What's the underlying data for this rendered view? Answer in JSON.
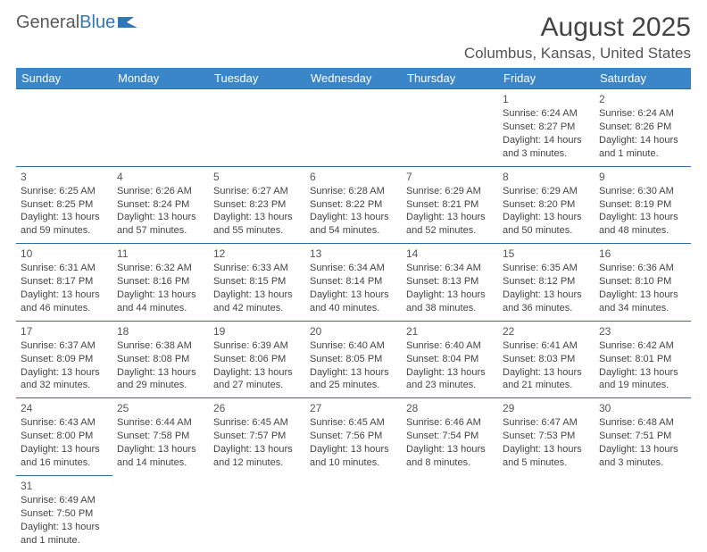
{
  "logo": {
    "part1": "General",
    "part2": "Blue"
  },
  "title": "August 2025",
  "location": "Columbus, Kansas, United States",
  "colors": {
    "header_bg": "#3a86c8",
    "header_fg": "#ffffff",
    "border": "#2f6aa8",
    "text": "#444444"
  },
  "day_headers": [
    "Sunday",
    "Monday",
    "Tuesday",
    "Wednesday",
    "Thursday",
    "Friday",
    "Saturday"
  ],
  "weeks": [
    [
      null,
      null,
      null,
      null,
      null,
      {
        "n": "1",
        "sr": "Sunrise: 6:24 AM",
        "ss": "Sunset: 8:27 PM",
        "dl": "Daylight: 14 hours and 3 minutes."
      },
      {
        "n": "2",
        "sr": "Sunrise: 6:24 AM",
        "ss": "Sunset: 8:26 PM",
        "dl": "Daylight: 14 hours and 1 minute."
      }
    ],
    [
      {
        "n": "3",
        "sr": "Sunrise: 6:25 AM",
        "ss": "Sunset: 8:25 PM",
        "dl": "Daylight: 13 hours and 59 minutes."
      },
      {
        "n": "4",
        "sr": "Sunrise: 6:26 AM",
        "ss": "Sunset: 8:24 PM",
        "dl": "Daylight: 13 hours and 57 minutes."
      },
      {
        "n": "5",
        "sr": "Sunrise: 6:27 AM",
        "ss": "Sunset: 8:23 PM",
        "dl": "Daylight: 13 hours and 55 minutes."
      },
      {
        "n": "6",
        "sr": "Sunrise: 6:28 AM",
        "ss": "Sunset: 8:22 PM",
        "dl": "Daylight: 13 hours and 54 minutes."
      },
      {
        "n": "7",
        "sr": "Sunrise: 6:29 AM",
        "ss": "Sunset: 8:21 PM",
        "dl": "Daylight: 13 hours and 52 minutes."
      },
      {
        "n": "8",
        "sr": "Sunrise: 6:29 AM",
        "ss": "Sunset: 8:20 PM",
        "dl": "Daylight: 13 hours and 50 minutes."
      },
      {
        "n": "9",
        "sr": "Sunrise: 6:30 AM",
        "ss": "Sunset: 8:19 PM",
        "dl": "Daylight: 13 hours and 48 minutes."
      }
    ],
    [
      {
        "n": "10",
        "sr": "Sunrise: 6:31 AM",
        "ss": "Sunset: 8:17 PM",
        "dl": "Daylight: 13 hours and 46 minutes."
      },
      {
        "n": "11",
        "sr": "Sunrise: 6:32 AM",
        "ss": "Sunset: 8:16 PM",
        "dl": "Daylight: 13 hours and 44 minutes."
      },
      {
        "n": "12",
        "sr": "Sunrise: 6:33 AM",
        "ss": "Sunset: 8:15 PM",
        "dl": "Daylight: 13 hours and 42 minutes."
      },
      {
        "n": "13",
        "sr": "Sunrise: 6:34 AM",
        "ss": "Sunset: 8:14 PM",
        "dl": "Daylight: 13 hours and 40 minutes."
      },
      {
        "n": "14",
        "sr": "Sunrise: 6:34 AM",
        "ss": "Sunset: 8:13 PM",
        "dl": "Daylight: 13 hours and 38 minutes."
      },
      {
        "n": "15",
        "sr": "Sunrise: 6:35 AM",
        "ss": "Sunset: 8:12 PM",
        "dl": "Daylight: 13 hours and 36 minutes."
      },
      {
        "n": "16",
        "sr": "Sunrise: 6:36 AM",
        "ss": "Sunset: 8:10 PM",
        "dl": "Daylight: 13 hours and 34 minutes."
      }
    ],
    [
      {
        "n": "17",
        "sr": "Sunrise: 6:37 AM",
        "ss": "Sunset: 8:09 PM",
        "dl": "Daylight: 13 hours and 32 minutes."
      },
      {
        "n": "18",
        "sr": "Sunrise: 6:38 AM",
        "ss": "Sunset: 8:08 PM",
        "dl": "Daylight: 13 hours and 29 minutes."
      },
      {
        "n": "19",
        "sr": "Sunrise: 6:39 AM",
        "ss": "Sunset: 8:06 PM",
        "dl": "Daylight: 13 hours and 27 minutes."
      },
      {
        "n": "20",
        "sr": "Sunrise: 6:40 AM",
        "ss": "Sunset: 8:05 PM",
        "dl": "Daylight: 13 hours and 25 minutes."
      },
      {
        "n": "21",
        "sr": "Sunrise: 6:40 AM",
        "ss": "Sunset: 8:04 PM",
        "dl": "Daylight: 13 hours and 23 minutes."
      },
      {
        "n": "22",
        "sr": "Sunrise: 6:41 AM",
        "ss": "Sunset: 8:03 PM",
        "dl": "Daylight: 13 hours and 21 minutes."
      },
      {
        "n": "23",
        "sr": "Sunrise: 6:42 AM",
        "ss": "Sunset: 8:01 PM",
        "dl": "Daylight: 13 hours and 19 minutes."
      }
    ],
    [
      {
        "n": "24",
        "sr": "Sunrise: 6:43 AM",
        "ss": "Sunset: 8:00 PM",
        "dl": "Daylight: 13 hours and 16 minutes."
      },
      {
        "n": "25",
        "sr": "Sunrise: 6:44 AM",
        "ss": "Sunset: 7:58 PM",
        "dl": "Daylight: 13 hours and 14 minutes."
      },
      {
        "n": "26",
        "sr": "Sunrise: 6:45 AM",
        "ss": "Sunset: 7:57 PM",
        "dl": "Daylight: 13 hours and 12 minutes."
      },
      {
        "n": "27",
        "sr": "Sunrise: 6:45 AM",
        "ss": "Sunset: 7:56 PM",
        "dl": "Daylight: 13 hours and 10 minutes."
      },
      {
        "n": "28",
        "sr": "Sunrise: 6:46 AM",
        "ss": "Sunset: 7:54 PM",
        "dl": "Daylight: 13 hours and 8 minutes."
      },
      {
        "n": "29",
        "sr": "Sunrise: 6:47 AM",
        "ss": "Sunset: 7:53 PM",
        "dl": "Daylight: 13 hours and 5 minutes."
      },
      {
        "n": "30",
        "sr": "Sunrise: 6:48 AM",
        "ss": "Sunset: 7:51 PM",
        "dl": "Daylight: 13 hours and 3 minutes."
      }
    ],
    [
      {
        "n": "31",
        "sr": "Sunrise: 6:49 AM",
        "ss": "Sunset: 7:50 PM",
        "dl": "Daylight: 13 hours and 1 minute."
      },
      null,
      null,
      null,
      null,
      null,
      null
    ]
  ]
}
